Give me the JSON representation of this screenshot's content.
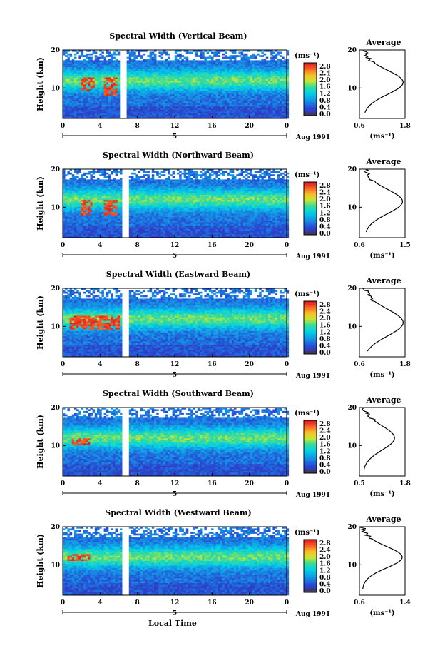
{
  "chart_data": [
    {
      "type": "heatmap",
      "title": "Spectral Width (Vertical Beam)",
      "ylabel": "Height (km)",
      "x_ticks": [
        "0",
        "4",
        "8",
        "12",
        "16",
        "20",
        "0"
      ],
      "y_ticks": [
        "20",
        "10"
      ],
      "xlim": [
        0,
        24
      ],
      "ylim": [
        2,
        20
      ],
      "day_label": "5",
      "date_label": "Aug 1991",
      "gap": [
        6.2,
        6.8
      ],
      "colorbar": {
        "unit": "(ms⁻¹)",
        "ticks": [
          "2.8",
          "2.4",
          "2.0",
          "1.6",
          "1.2",
          "0.8",
          "0.4",
          "0.0"
        ]
      },
      "hot_regions": [
        {
          "x": [
            2,
            3.5
          ],
          "y": [
            9,
            13
          ]
        },
        {
          "x": [
            4.5,
            5.8
          ],
          "y": [
            8,
            13
          ]
        }
      ],
      "average": {
        "title": "Average",
        "unit": "(ms⁻¹)",
        "x_ticks": [
          "0.6",
          "1.8"
        ],
        "xlim": [
          0.6,
          1.8
        ],
        "y_ticks": [
          "20",
          "10"
        ],
        "ylim": [
          2,
          20
        ],
        "peak_height": 11.5,
        "peak_value": 1.75,
        "base_value": 0.7,
        "width": 4.5
      }
    },
    {
      "type": "heatmap",
      "title": "Spectral Width (Northward Beam)",
      "ylabel": "Height (km)",
      "x_ticks": [
        "0",
        "4",
        "8",
        "12",
        "16",
        "20",
        "0"
      ],
      "y_ticks": [
        "20",
        "10"
      ],
      "xlim": [
        0,
        24
      ],
      "ylim": [
        2,
        20
      ],
      "day_label": "5",
      "date_label": "Aug 1991",
      "gap": [
        6.4,
        7.0
      ],
      "colorbar": {
        "unit": "(ms⁻¹)",
        "ticks": [
          "2.8",
          "2.4",
          "2.0",
          "1.6",
          "1.2",
          "0.8",
          "0.4",
          "0.0"
        ]
      },
      "hot_regions": [
        {
          "x": [
            2,
            3.2
          ],
          "y": [
            8,
            12
          ]
        },
        {
          "x": [
            4.5,
            5.8
          ],
          "y": [
            8,
            12
          ]
        }
      ],
      "average": {
        "title": "Average",
        "unit": "(ms⁻¹)",
        "x_ticks": [
          "0.6",
          "1.5"
        ],
        "xlim": [
          0.6,
          1.5
        ],
        "y_ticks": [
          "20",
          "10"
        ],
        "ylim": [
          2,
          20
        ],
        "peak_height": 11.5,
        "peak_value": 1.45,
        "base_value": 0.7,
        "width": 4.5
      }
    },
    {
      "type": "heatmap",
      "title": "Spectral Width (Eastward Beam)",
      "ylabel": "Height (km)",
      "x_ticks": [
        "0",
        "4",
        "8",
        "12",
        "16",
        "20",
        "0"
      ],
      "y_ticks": [
        "20",
        "10"
      ],
      "xlim": [
        0,
        24
      ],
      "ylim": [
        2,
        20
      ],
      "day_label": "5",
      "date_label": "Aug 1991",
      "gap": [
        6.4,
        7.0
      ],
      "colorbar": {
        "unit": "(ms⁻¹)",
        "ticks": [
          "2.8",
          "2.4",
          "2.0",
          "1.6",
          "1.2",
          "0.8",
          "0.4",
          "0.0"
        ]
      },
      "hot_regions": [
        {
          "x": [
            0.8,
            6.2
          ],
          "y": [
            9,
            13
          ]
        }
      ],
      "average": {
        "title": "Average",
        "unit": "(ms⁻¹)",
        "x_ticks": [
          "0.6",
          "1.8"
        ],
        "xlim": [
          0.6,
          1.8
        ],
        "y_ticks": [
          "20",
          "10"
        ],
        "ylim": [
          2,
          20
        ],
        "peak_height": 11.0,
        "peak_value": 1.75,
        "base_value": 0.7,
        "width": 5.0
      }
    },
    {
      "type": "heatmap",
      "title": "Spectral Width (Southward Beam)",
      "ylabel": "Height (km)",
      "x_ticks": [
        "0",
        "4",
        "8",
        "12",
        "16",
        "20",
        "0"
      ],
      "y_ticks": [
        "20",
        "10"
      ],
      "xlim": [
        0,
        24
      ],
      "ylim": [
        2,
        20
      ],
      "day_label": "5",
      "date_label": "Aug 1991",
      "gap": [
        6.4,
        7.0
      ],
      "colorbar": {
        "unit": "(ms⁻¹)",
        "ticks": [
          "2.8",
          "2.4",
          "2.0",
          "1.6",
          "1.2",
          "0.8",
          "0.4",
          "0.0"
        ]
      },
      "hot_regions": [
        {
          "x": [
            1,
            3
          ],
          "y": [
            10,
            12
          ]
        }
      ],
      "average": {
        "title": "Average",
        "unit": "(ms⁻¹)",
        "x_ticks": [
          "0.5",
          "1.8"
        ],
        "xlim": [
          0.5,
          1.8
        ],
        "y_ticks": [
          "20",
          "10"
        ],
        "ylim": [
          2,
          20
        ],
        "peak_height": 12.0,
        "peak_value": 1.5,
        "base_value": 0.6,
        "width": 4.5
      }
    },
    {
      "type": "heatmap",
      "title": "Spectral Width (Westward Beam)",
      "ylabel": "Height (km)",
      "x_ticks": [
        "0",
        "4",
        "8",
        "12",
        "16",
        "20",
        "0"
      ],
      "y_ticks": [
        "20",
        "10"
      ],
      "xlim": [
        0,
        24
      ],
      "ylim": [
        2,
        20
      ],
      "day_label": "5",
      "date_label": "Aug 1991",
      "gap": [
        6.4,
        7.0
      ],
      "colorbar": {
        "unit": "(ms⁻¹)",
        "ticks": [
          "2.8",
          "2.4",
          "2.0",
          "1.6",
          "1.2",
          "0.8",
          "0.4",
          "0.0"
        ]
      },
      "hot_regions": [
        {
          "x": [
            0.5,
            3
          ],
          "y": [
            11,
            13
          ]
        }
      ],
      "average": {
        "title": "Average",
        "unit": "(ms⁻¹)",
        "x_ticks": [
          "0.6",
          "1.4"
        ],
        "xlim": [
          0.6,
          1.4
        ],
        "y_ticks": [
          "20",
          "10"
        ],
        "ylim": [
          2,
          20
        ],
        "peak_height": 12.0,
        "peak_value": 1.35,
        "base_value": 0.65,
        "width": 4.0
      }
    }
  ],
  "xlabel": "Local Time"
}
